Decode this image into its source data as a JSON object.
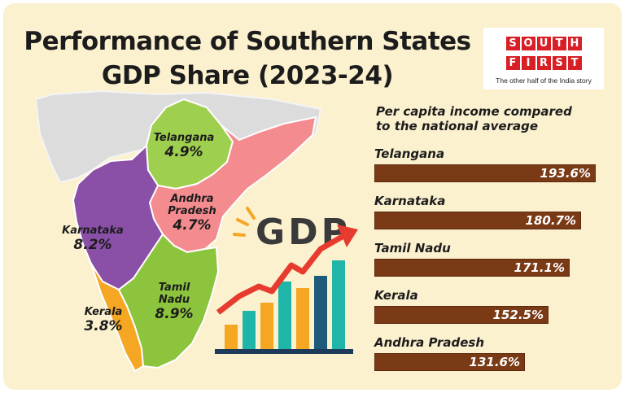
{
  "header": {
    "title_line1": "Performance of Southern States",
    "title_line2": "GDP Share (2023-24)"
  },
  "logo": {
    "word1": [
      "S",
      "O",
      "U",
      "T",
      "H"
    ],
    "word2": [
      "F",
      "I",
      "R",
      "S",
      "T"
    ],
    "tagline": "The other half of the India story"
  },
  "colors": {
    "background": "#fbf1cf",
    "bar": "#7a3a16",
    "telangana": "#9fcf4e",
    "andhra_pradesh": "#f48b8f",
    "karnataka": "#8a4fa6",
    "tamil_nadu": "#8cc43e",
    "kerala": "#f5a623",
    "india_outline": "#dcdcdc",
    "logo_red": "#d81f26"
  },
  "map": {
    "states": [
      {
        "name_line1": "Telangana",
        "name_line2": "",
        "value": "4.9%"
      },
      {
        "name_line1": "Andhra",
        "name_line2": "Pradesh",
        "value": "4.7%"
      },
      {
        "name_line1": "Karnataka",
        "name_line2": "",
        "value": "8.2%"
      },
      {
        "name_line1": "Tamil",
        "name_line2": "Nadu",
        "value": "8.9%"
      },
      {
        "name_line1": "Kerala",
        "name_line2": "",
        "value": "3.8%"
      }
    ]
  },
  "gdp_art": {
    "text": "GDP"
  },
  "chart_data": {
    "type": "bar",
    "orientation": "horizontal",
    "title": "Per capita income compared to the national average",
    "title_line1": "Per capita income compared",
    "title_line2": "to the national average",
    "categories": [
      "Telangana",
      "Karnataka",
      "Tamil Nadu",
      "Kerala",
      "Andhra Pradesh"
    ],
    "values": [
      193.6,
      180.7,
      171.1,
      152.5,
      131.6
    ],
    "value_labels": [
      "193.6%",
      "180.7%",
      "171.1%",
      "152.5%",
      "131.6%"
    ],
    "unit": "%",
    "xlim": [
      0,
      200
    ],
    "grid": false,
    "legend": "none"
  }
}
